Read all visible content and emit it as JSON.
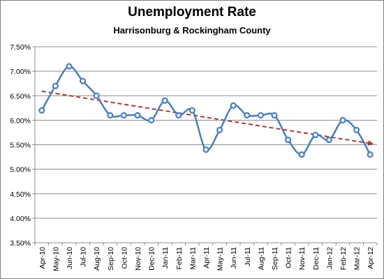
{
  "chart_data": {
    "type": "line",
    "title": "Unemployment Rate",
    "subtitle": "Harrisonburg & Rockingham County",
    "xlabel": "",
    "ylabel": "",
    "categories": [
      "Apr-10",
      "May-10",
      "Jun-10",
      "Jul-10",
      "Aug-10",
      "Sep-10",
      "Oct-10",
      "Nov-10",
      "Dec-10",
      "Jan-11",
      "Feb-11",
      "Mar-11",
      "Apr-11",
      "May-11",
      "Jun-11",
      "Jul-11",
      "Aug-11",
      "Sep-11",
      "Oct-11",
      "Nov-11",
      "Dec-11",
      "Jan-12",
      "Feb-12",
      "Mar-12",
      "Apr-12"
    ],
    "series": [
      {
        "values": [
          6.2,
          6.7,
          7.1,
          6.8,
          6.5,
          6.1,
          6.1,
          6.1,
          6.0,
          6.4,
          6.1,
          6.2,
          5.4,
          5.8,
          6.3,
          6.1,
          6.1,
          6.1,
          5.6,
          5.3,
          5.7,
          5.6,
          6.0,
          5.8,
          5.3
        ],
        "color": "#4a7ebb"
      }
    ],
    "trendline": {
      "type": "linear",
      "style": "dashed",
      "color": "#a33b36",
      "arrow": true
    },
    "ylim": [
      3.5,
      7.5
    ],
    "yticks": [
      "3.50%",
      "4.00%",
      "4.50%",
      "5.00%",
      "5.50%",
      "6.00%",
      "6.50%",
      "7.00%",
      "7.50%"
    ],
    "grid": "horizontal",
    "legend": "none"
  }
}
